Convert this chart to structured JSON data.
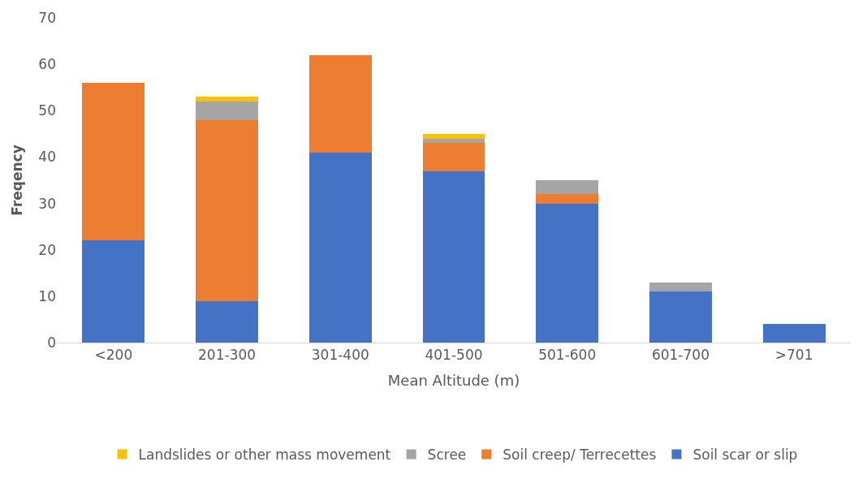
{
  "chart_data": {
    "type": "bar",
    "stacked": true,
    "xlabel": "Mean Altitude (m)",
    "ylabel": "Freqency",
    "categories": [
      "<200",
      "201-300",
      "301-400",
      "401-500",
      "501-600",
      "601-700",
      ">701"
    ],
    "series": [
      {
        "name": "Soil scar or slip",
        "color": "#4472c4",
        "values": [
          22,
          9,
          41,
          37,
          30,
          11,
          4
        ]
      },
      {
        "name": "Soil creep/ Terrecettes",
        "color": "#ed7d31",
        "values": [
          34,
          39,
          21,
          6,
          2,
          0,
          0
        ]
      },
      {
        "name": "Scree",
        "color": "#a5a5a5",
        "values": [
          0,
          4,
          0,
          1,
          3,
          2,
          0
        ]
      },
      {
        "name": "Landslides or other mass movement",
        "color": "#ffc000",
        "values": [
          0,
          1,
          0,
          1,
          0,
          0,
          0
        ]
      }
    ],
    "ylim": [
      0,
      70
    ],
    "yticks": [
      0,
      10,
      20,
      30,
      40,
      50,
      60,
      70
    ],
    "grid": false,
    "legend": "bottom"
  }
}
